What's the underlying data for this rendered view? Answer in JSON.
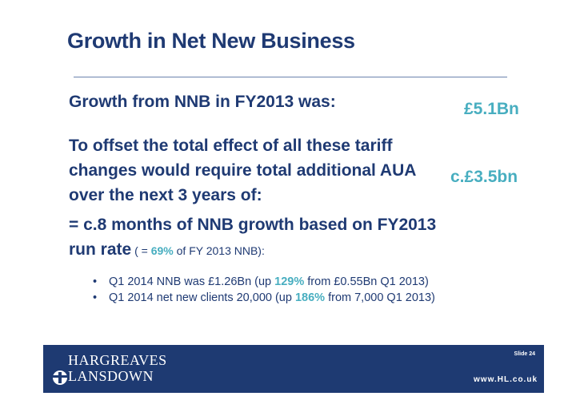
{
  "slide": {
    "title": "Growth in Net New Business",
    "line1": "Growth from NNB in FY2013 was:",
    "value1": "£5.1Bn",
    "line2": "To offset the total effect of all these tariff changes would require total additional AUA over the next 3 years of:",
    "value2": "c.£3.5bn",
    "line3_main": "= c.8 months of NNB growth based on FY2013 run rate",
    "line3_note_prefix": " ( = ",
    "line3_note_pct": "69%",
    "line3_note_suffix": " of FY 2013 NNB):",
    "bullets": [
      {
        "bullet": "•",
        "pre": "Q1 2014 NNB was £1.26Bn (up ",
        "pct": "129%",
        "post": " from £0.55Bn Q1 2013)"
      },
      {
        "bullet": "•",
        "pre": "Q1 2014 net new clients 20,000 (up ",
        "pct": "186%",
        "post": " from 7,000 Q1 2013)"
      }
    ]
  },
  "footer": {
    "logo_line1": "HARGREAVES",
    "logo_line2": "LANSDOWN",
    "slide_label": "Slide 24",
    "url": "www.HL.co.uk"
  },
  "colors": {
    "navy": "#1f3a73",
    "accent": "#48aec0",
    "footer_bg": "#1e3a72"
  }
}
